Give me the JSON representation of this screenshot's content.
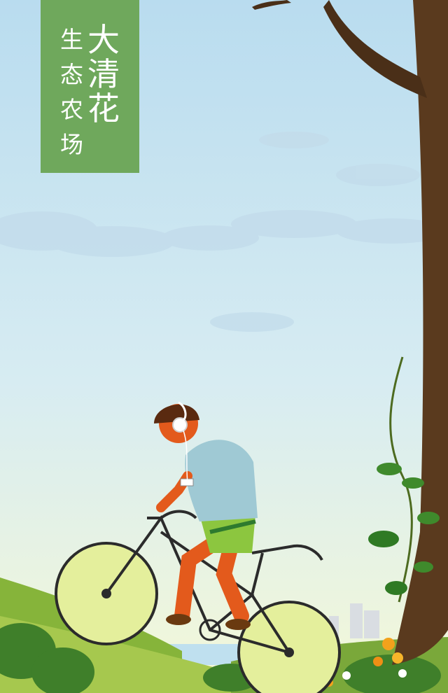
{
  "brand": {
    "title_chars": [
      "大",
      "清",
      "花"
    ],
    "subtitle_chars": [
      "生",
      "态",
      "农",
      "场"
    ],
    "color": "#6fa85c"
  },
  "scene": {
    "sky_top": "#b9dcef",
    "sky_bottom": "#f2f7dc",
    "hill_color": "#86b43a",
    "tree_trunk": "#5a3a1e",
    "shirt_color": "#9fc9d4",
    "shorts_color": "#8cc63f",
    "skin_color": "#e35a1c",
    "helmet_color": "#5a2a10",
    "wheel_fill": "#e4ef9c"
  }
}
